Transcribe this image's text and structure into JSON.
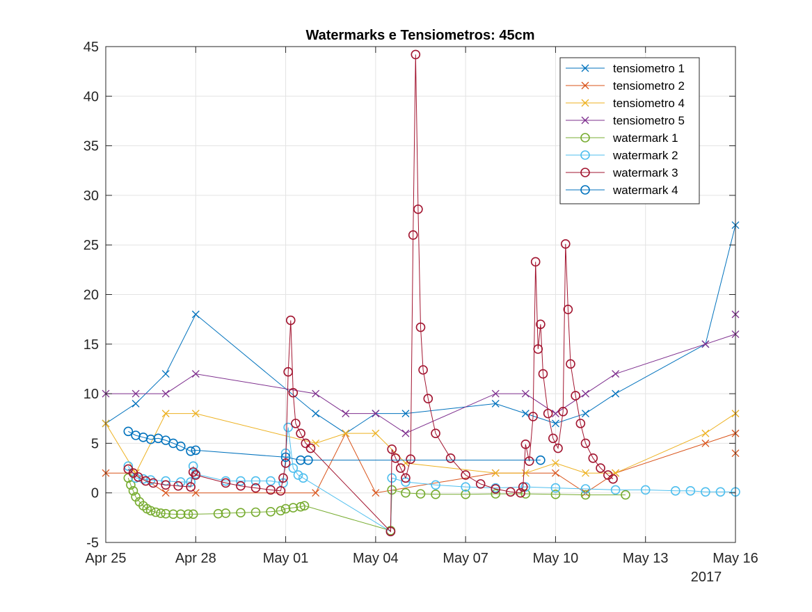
{
  "chart_data": {
    "type": "line",
    "title": "Watermarks e Tensiometros: 45cm",
    "xlabel": "",
    "ylabel": "",
    "x_ticks": [
      "Apr 25",
      "Apr 28",
      "May 01",
      "May 04",
      "May 07",
      "May 10",
      "May 13",
      "May 16"
    ],
    "x_year_label": "2017",
    "x_range": [
      "2017-04-25",
      "2017-05-16"
    ],
    "y_ticks": [
      -5,
      0,
      5,
      10,
      15,
      20,
      25,
      30,
      35,
      40,
      45
    ],
    "ylim": [
      -5,
      45
    ],
    "grid": true,
    "legend_position": "top-right",
    "series": [
      {
        "name": "tensiometro 1",
        "marker": "x",
        "color": "#0072BD",
        "points": [
          [
            "2017-04-25 00:00",
            7
          ],
          [
            "2017-04-26 00:00",
            9
          ],
          [
            "2017-04-27 00:00",
            12
          ],
          [
            "2017-04-28 00:00",
            18
          ],
          [
            "2017-05-02 00:00",
            8
          ],
          [
            "2017-05-03 00:00",
            6
          ],
          [
            "2017-05-04 00:00",
            8
          ],
          [
            "2017-05-05 00:00",
            8
          ],
          [
            "2017-05-08 00:00",
            9
          ],
          [
            "2017-05-09 00:00",
            8
          ],
          [
            "2017-05-10 00:00",
            7
          ],
          [
            "2017-05-11 00:00",
            8
          ],
          [
            "2017-05-12 00:00",
            10
          ],
          [
            "2017-05-15 00:00",
            15
          ],
          [
            "2017-05-16 00:00",
            27
          ]
        ]
      },
      {
        "name": "tensiometro 2",
        "marker": "x",
        "color": "#D95319",
        "points": [
          [
            "2017-04-25 00:00",
            2
          ],
          [
            "2017-04-26 00:00",
            2
          ],
          [
            "2017-04-27 00:00",
            0
          ],
          [
            "2017-04-28 00:00",
            0
          ],
          [
            "2017-05-02 00:00",
            0
          ],
          [
            "2017-05-03 00:00",
            6
          ],
          [
            "2017-05-04 00:00",
            0
          ],
          [
            "2017-05-08 00:00",
            2
          ],
          [
            "2017-05-10 00:00",
            2
          ],
          [
            "2017-05-11 00:00",
            0
          ],
          [
            "2017-05-12 00:00",
            2
          ],
          [
            "2017-05-15 00:00",
            5
          ],
          [
            "2017-05-16 00:00",
            6
          ],
          [
            "2017-05-16 00:00",
            4
          ]
        ]
      },
      {
        "name": "tensiometro 4",
        "marker": "x",
        "color": "#EDB120",
        "points": [
          [
            "2017-04-25 00:00",
            7
          ],
          [
            "2017-04-26 00:00",
            2
          ],
          [
            "2017-04-27 00:00",
            8
          ],
          [
            "2017-04-28 00:00",
            8
          ],
          [
            "2017-05-02 00:00",
            5
          ],
          [
            "2017-05-03 00:00",
            6
          ],
          [
            "2017-05-04 00:00",
            6
          ],
          [
            "2017-05-05 00:00",
            3
          ],
          [
            "2017-05-08 00:00",
            2
          ],
          [
            "2017-05-09 00:00",
            2
          ],
          [
            "2017-05-10 00:00",
            3
          ],
          [
            "2017-05-11 00:00",
            2
          ],
          [
            "2017-05-12 00:00",
            2
          ],
          [
            "2017-05-15 00:00",
            6
          ],
          [
            "2017-05-16 00:00",
            8
          ]
        ]
      },
      {
        "name": "tensiometro 5",
        "marker": "x",
        "color": "#7E2F8E",
        "points": [
          [
            "2017-04-25 00:00",
            10
          ],
          [
            "2017-04-26 00:00",
            10
          ],
          [
            "2017-04-27 00:00",
            10
          ],
          [
            "2017-04-28 00:00",
            12
          ],
          [
            "2017-05-02 00:00",
            10
          ],
          [
            "2017-05-03 00:00",
            8
          ],
          [
            "2017-05-04 00:00",
            8
          ],
          [
            "2017-05-05 00:00",
            6
          ],
          [
            "2017-05-08 00:00",
            10
          ],
          [
            "2017-05-09 00:00",
            10
          ],
          [
            "2017-05-10 00:00",
            8
          ],
          [
            "2017-05-11 00:00",
            10
          ],
          [
            "2017-05-12 00:00",
            12
          ],
          [
            "2017-05-15 00:00",
            15
          ],
          [
            "2017-05-16 00:00",
            16
          ],
          [
            "2017-05-16 00:00",
            18
          ]
        ]
      },
      {
        "name": "watermark 1",
        "marker": "o",
        "color": "#77AC30",
        "points": [
          [
            "2017-04-25 18:00",
            1.5
          ],
          [
            "2017-04-25 20:00",
            0.8
          ],
          [
            "2017-04-25 22:00",
            0.2
          ],
          [
            "2017-04-26 00:00",
            -0.4
          ],
          [
            "2017-04-26 03:00",
            -0.9
          ],
          [
            "2017-04-26 06:00",
            -1.3
          ],
          [
            "2017-04-26 09:00",
            -1.6
          ],
          [
            "2017-04-26 12:00",
            -1.8
          ],
          [
            "2017-04-26 16:00",
            -1.95
          ],
          [
            "2017-04-26 20:00",
            -2.05
          ],
          [
            "2017-04-27 00:00",
            -2.1
          ],
          [
            "2017-04-27 06:00",
            -2.15
          ],
          [
            "2017-04-27 12:00",
            -2.15
          ],
          [
            "2017-04-27 18:00",
            -2.15
          ],
          [
            "2017-04-27 22:00",
            -2.15
          ],
          [
            "2017-04-28 18:00",
            -2.1
          ],
          [
            "2017-04-29 00:00",
            -2.05
          ],
          [
            "2017-04-29 12:00",
            -2.0
          ],
          [
            "2017-04-30 00:00",
            -1.95
          ],
          [
            "2017-04-30 12:00",
            -1.9
          ],
          [
            "2017-04-30 20:00",
            -1.8
          ],
          [
            "2017-05-01 00:00",
            -1.6
          ],
          [
            "2017-05-01 06:00",
            -1.5
          ],
          [
            "2017-05-01 12:00",
            -1.4
          ],
          [
            "2017-05-01 15:00",
            -1.3
          ],
          [
            "2017-05-04 12:00",
            -3.8
          ],
          [
            "2017-05-04 13:00",
            0.3
          ],
          [
            "2017-05-05 00:00",
            0.0
          ],
          [
            "2017-05-05 12:00",
            -0.1
          ],
          [
            "2017-05-06 00:00",
            -0.15
          ],
          [
            "2017-05-07 00:00",
            -0.15
          ],
          [
            "2017-05-08 00:00",
            -0.1
          ],
          [
            "2017-05-09 00:00",
            -0.1
          ],
          [
            "2017-05-10 00:00",
            -0.15
          ],
          [
            "2017-05-11 00:00",
            -0.2
          ],
          [
            "2017-05-12 08:00",
            -0.2
          ]
        ]
      },
      {
        "name": "watermark 2",
        "marker": "o",
        "color": "#4DBEEE",
        "points": [
          [
            "2017-04-25 18:00",
            2.7
          ],
          [
            "2017-04-26 00:00",
            1.5
          ],
          [
            "2017-04-26 06:00",
            1.4
          ],
          [
            "2017-04-26 12:00",
            1.3
          ],
          [
            "2017-04-27 00:00",
            1.2
          ],
          [
            "2017-04-27 12:00",
            1.1
          ],
          [
            "2017-04-27 20:00",
            1.1
          ],
          [
            "2017-04-27 22:00",
            2.7
          ],
          [
            "2017-04-28 00:00",
            1.9
          ],
          [
            "2017-04-29 00:00",
            1.2
          ],
          [
            "2017-04-29 12:00",
            1.2
          ],
          [
            "2017-04-30 00:00",
            1.2
          ],
          [
            "2017-04-30 12:00",
            1.2
          ],
          [
            "2017-04-30 22:00",
            1.0
          ],
          [
            "2017-05-01 00:00",
            4.0
          ],
          [
            "2017-05-01 02:00",
            6.6
          ],
          [
            "2017-05-01 06:00",
            2.5
          ],
          [
            "2017-05-01 10:00",
            1.8
          ],
          [
            "2017-05-01 14:00",
            1.5
          ],
          [
            "2017-05-04 12:00",
            -3.9
          ],
          [
            "2017-05-04 13:00",
            1.5
          ],
          [
            "2017-05-05 00:00",
            1.1
          ],
          [
            "2017-05-06 00:00",
            0.8
          ],
          [
            "2017-05-07 00:00",
            0.6
          ],
          [
            "2017-05-08 00:00",
            0.5
          ],
          [
            "2017-05-09 00:00",
            0.6
          ],
          [
            "2017-05-10 00:00",
            0.5
          ],
          [
            "2017-05-11 00:00",
            0.4
          ],
          [
            "2017-05-12 00:00",
            0.3
          ],
          [
            "2017-05-13 00:00",
            0.3
          ],
          [
            "2017-05-14 00:00",
            0.2
          ],
          [
            "2017-05-14 12:00",
            0.2
          ],
          [
            "2017-05-15 00:00",
            0.1
          ],
          [
            "2017-05-15 12:00",
            0.1
          ],
          [
            "2017-05-16 00:00",
            0.1
          ]
        ]
      },
      {
        "name": "watermark 3",
        "marker": "o",
        "color": "#A2142F",
        "points": [
          [
            "2017-04-25 18:00",
            2.4
          ],
          [
            "2017-04-25 22:00",
            2.0
          ],
          [
            "2017-04-26 02:00",
            1.6
          ],
          [
            "2017-04-26 08:00",
            1.2
          ],
          [
            "2017-04-26 14:00",
            1.0
          ],
          [
            "2017-04-27 00:00",
            0.8
          ],
          [
            "2017-04-27 10:00",
            0.7
          ],
          [
            "2017-04-27 20:00",
            0.6
          ],
          [
            "2017-04-27 22:00",
            2.1
          ],
          [
            "2017-04-28 00:00",
            1.8
          ],
          [
            "2017-04-29 00:00",
            1.0
          ],
          [
            "2017-04-29 12:00",
            0.7
          ],
          [
            "2017-04-30 00:00",
            0.5
          ],
          [
            "2017-04-30 12:00",
            0.3
          ],
          [
            "2017-04-30 20:00",
            0.2
          ],
          [
            "2017-04-30 22:00",
            1.5
          ],
          [
            "2017-05-01 00:00",
            3.0
          ],
          [
            "2017-05-01 02:00",
            12.2
          ],
          [
            "2017-05-01 04:00",
            17.4
          ],
          [
            "2017-05-01 06:00",
            10.1
          ],
          [
            "2017-05-01 08:00",
            7.0
          ],
          [
            "2017-05-01 12:00",
            6.0
          ],
          [
            "2017-05-01 16:00",
            5.0
          ],
          [
            "2017-05-01 20:00",
            4.5
          ],
          [
            "2017-05-04 12:00",
            -3.9
          ],
          [
            "2017-05-04 13:00",
            4.4
          ],
          [
            "2017-05-04 16:00",
            3.5
          ],
          [
            "2017-05-04 20:00",
            2.5
          ],
          [
            "2017-05-05 00:00",
            1.5
          ],
          [
            "2017-05-05 04:00",
            3.4
          ],
          [
            "2017-05-05 06:00",
            26.0
          ],
          [
            "2017-05-05 08:00",
            44.2
          ],
          [
            "2017-05-05 10:00",
            28.6
          ],
          [
            "2017-05-05 12:00",
            16.7
          ],
          [
            "2017-05-05 14:00",
            12.4
          ],
          [
            "2017-05-05 18:00",
            9.5
          ],
          [
            "2017-05-06 00:00",
            6.0
          ],
          [
            "2017-05-06 12:00",
            3.5
          ],
          [
            "2017-05-07 00:00",
            1.8
          ],
          [
            "2017-05-07 12:00",
            0.9
          ],
          [
            "2017-05-08 00:00",
            0.4
          ],
          [
            "2017-05-08 12:00",
            0.1
          ],
          [
            "2017-05-08 20:00",
            0.0
          ],
          [
            "2017-05-08 22:00",
            0.6
          ],
          [
            "2017-05-09 00:00",
            4.9
          ],
          [
            "2017-05-09 03:00",
            3.2
          ],
          [
            "2017-05-09 06:00",
            7.7
          ],
          [
            "2017-05-09 08:00",
            23.3
          ],
          [
            "2017-05-09 10:00",
            14.5
          ],
          [
            "2017-05-09 12:00",
            17.0
          ],
          [
            "2017-05-09 14:00",
            12.0
          ],
          [
            "2017-05-09 18:00",
            8.0
          ],
          [
            "2017-05-09 22:00",
            5.5
          ],
          [
            "2017-05-10 02:00",
            4.5
          ],
          [
            "2017-05-10 06:00",
            8.2
          ],
          [
            "2017-05-10 08:00",
            25.1
          ],
          [
            "2017-05-10 10:00",
            18.5
          ],
          [
            "2017-05-10 12:00",
            13.0
          ],
          [
            "2017-05-10 16:00",
            9.8
          ],
          [
            "2017-05-10 20:00",
            7.0
          ],
          [
            "2017-05-11 00:00",
            5.0
          ],
          [
            "2017-05-11 06:00",
            3.5
          ],
          [
            "2017-05-11 12:00",
            2.5
          ],
          [
            "2017-05-11 18:00",
            1.8
          ],
          [
            "2017-05-11 22:00",
            1.4
          ]
        ]
      },
      {
        "name": "watermark 4",
        "marker": "o",
        "color": "#0072BD",
        "points": [
          [
            "2017-04-25 18:00",
            6.2
          ],
          [
            "2017-04-26 00:00",
            5.8
          ],
          [
            "2017-04-26 06:00",
            5.6
          ],
          [
            "2017-04-26 12:00",
            5.4
          ],
          [
            "2017-04-26 18:00",
            5.5
          ],
          [
            "2017-04-27 00:00",
            5.3
          ],
          [
            "2017-04-27 06:00",
            5.0
          ],
          [
            "2017-04-27 12:00",
            4.7
          ],
          [
            "2017-04-27 20:00",
            4.2
          ],
          [
            "2017-04-28 00:00",
            4.3
          ],
          [
            "2017-05-01 00:00",
            3.6
          ],
          [
            "2017-05-01 12:00",
            3.3
          ],
          [
            "2017-05-01 18:00",
            3.3
          ],
          [
            "2017-05-09 12:00",
            3.3
          ]
        ]
      }
    ]
  }
}
